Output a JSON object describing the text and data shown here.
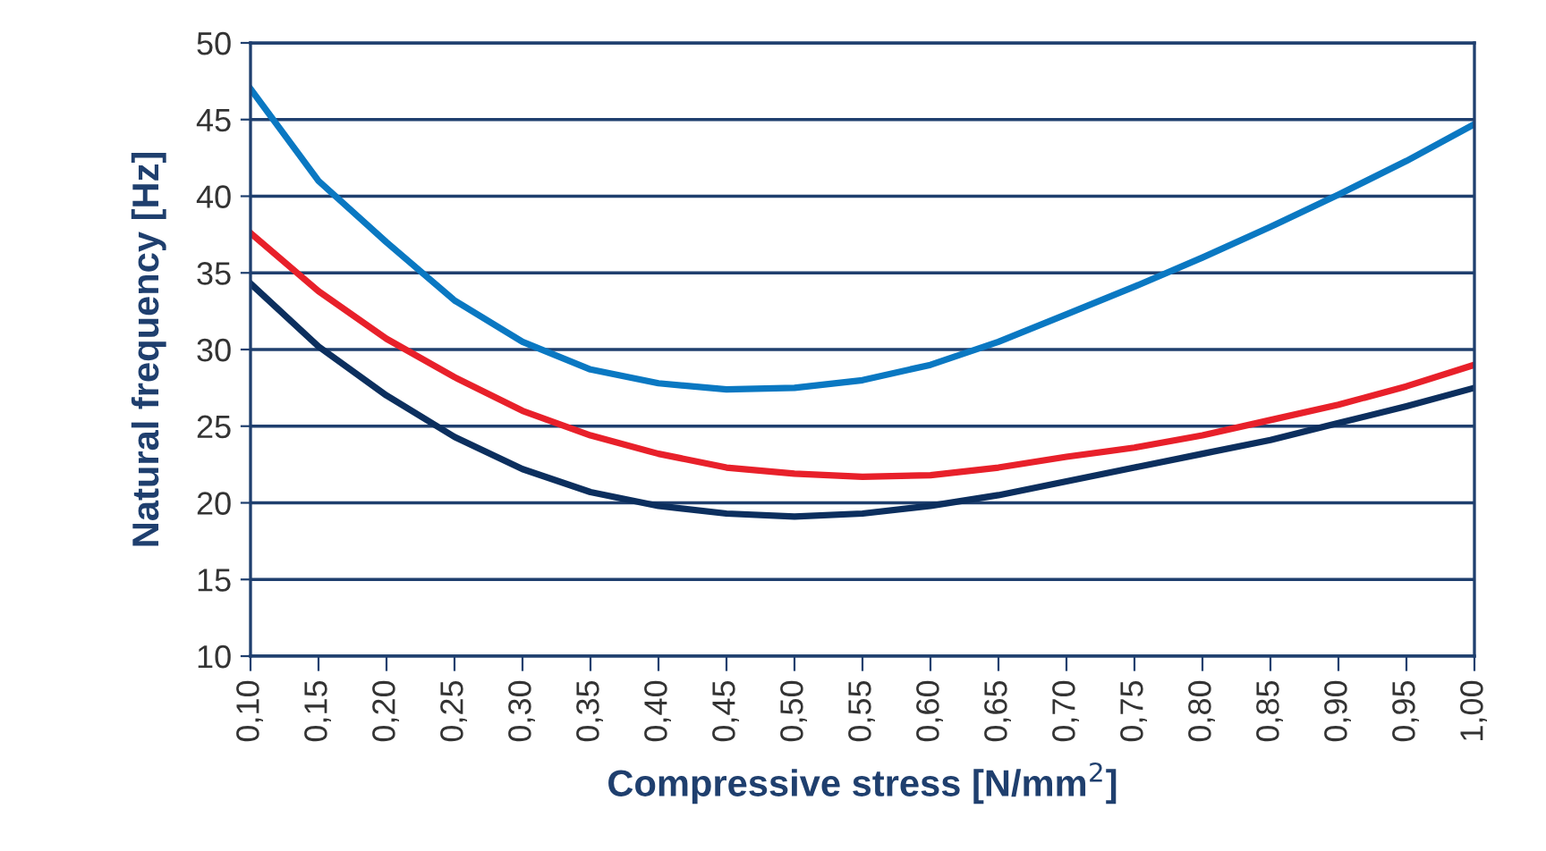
{
  "chart_data": {
    "type": "line",
    "xlabel": "Compressive stress [N/mm$^{2}$]",
    "ylabel": "Natural frequency [Hz]",
    "x": [
      0.1,
      0.15,
      0.2,
      0.25,
      0.3,
      0.35,
      0.4,
      0.45,
      0.5,
      0.55,
      0.6,
      0.65,
      0.7,
      0.75,
      0.8,
      0.85,
      0.9,
      0.95,
      1.0
    ],
    "series": [
      {
        "color": "#0a78c2",
        "values": [
          47,
          41,
          37,
          33.2,
          30.5,
          28.7,
          27.8,
          27.4,
          27.5,
          28,
          29,
          30.5,
          32.3,
          34.1,
          36,
          38,
          40.1,
          42.3,
          44.7
        ]
      },
      {
        "color": "#e8202a",
        "values": [
          37.6,
          33.8,
          30.7,
          28.2,
          26,
          24.4,
          23.2,
          22.3,
          21.9,
          21.7,
          21.8,
          22.3,
          23,
          23.6,
          24.4,
          25.4,
          26.4,
          27.6,
          29
        ]
      },
      {
        "color": "#0c2f5e",
        "values": [
          34.3,
          30.2,
          27,
          24.3,
          22.2,
          20.7,
          19.8,
          19.3,
          19.1,
          19.3,
          19.8,
          20.5,
          21.4,
          22.3,
          23.2,
          24.1,
          25.2,
          26.3,
          27.5
        ]
      }
    ],
    "xlim": [
      0.1,
      1.0
    ],
    "ylim": [
      10,
      50
    ],
    "xticks": [
      {
        "value": 0.1,
        "label": "0,10"
      },
      {
        "value": 0.15,
        "label": "0,15"
      },
      {
        "value": 0.2,
        "label": "0,20"
      },
      {
        "value": 0.25,
        "label": "0,25"
      },
      {
        "value": 0.3,
        "label": "0,30"
      },
      {
        "value": 0.35,
        "label": "0,35"
      },
      {
        "value": 0.4,
        "label": "0,40"
      },
      {
        "value": 0.45,
        "label": "0,45"
      },
      {
        "value": 0.5,
        "label": "0,50"
      },
      {
        "value": 0.55,
        "label": "0,55"
      },
      {
        "value": 0.6,
        "label": "0,60"
      },
      {
        "value": 0.65,
        "label": "0,65"
      },
      {
        "value": 0.7,
        "label": "0,70"
      },
      {
        "value": 0.75,
        "label": "0,75"
      },
      {
        "value": 0.8,
        "label": "0,80"
      },
      {
        "value": 0.85,
        "label": "0,85"
      },
      {
        "value": 0.9,
        "label": "0,90"
      },
      {
        "value": 0.95,
        "label": "0,95"
      },
      {
        "value": 1.0,
        "label": "1,00"
      }
    ],
    "yticks": [
      10,
      15,
      20,
      25,
      30,
      35,
      40,
      45,
      50
    ],
    "grid": "y",
    "legend": false,
    "marker": "none",
    "line_style": "solid"
  }
}
